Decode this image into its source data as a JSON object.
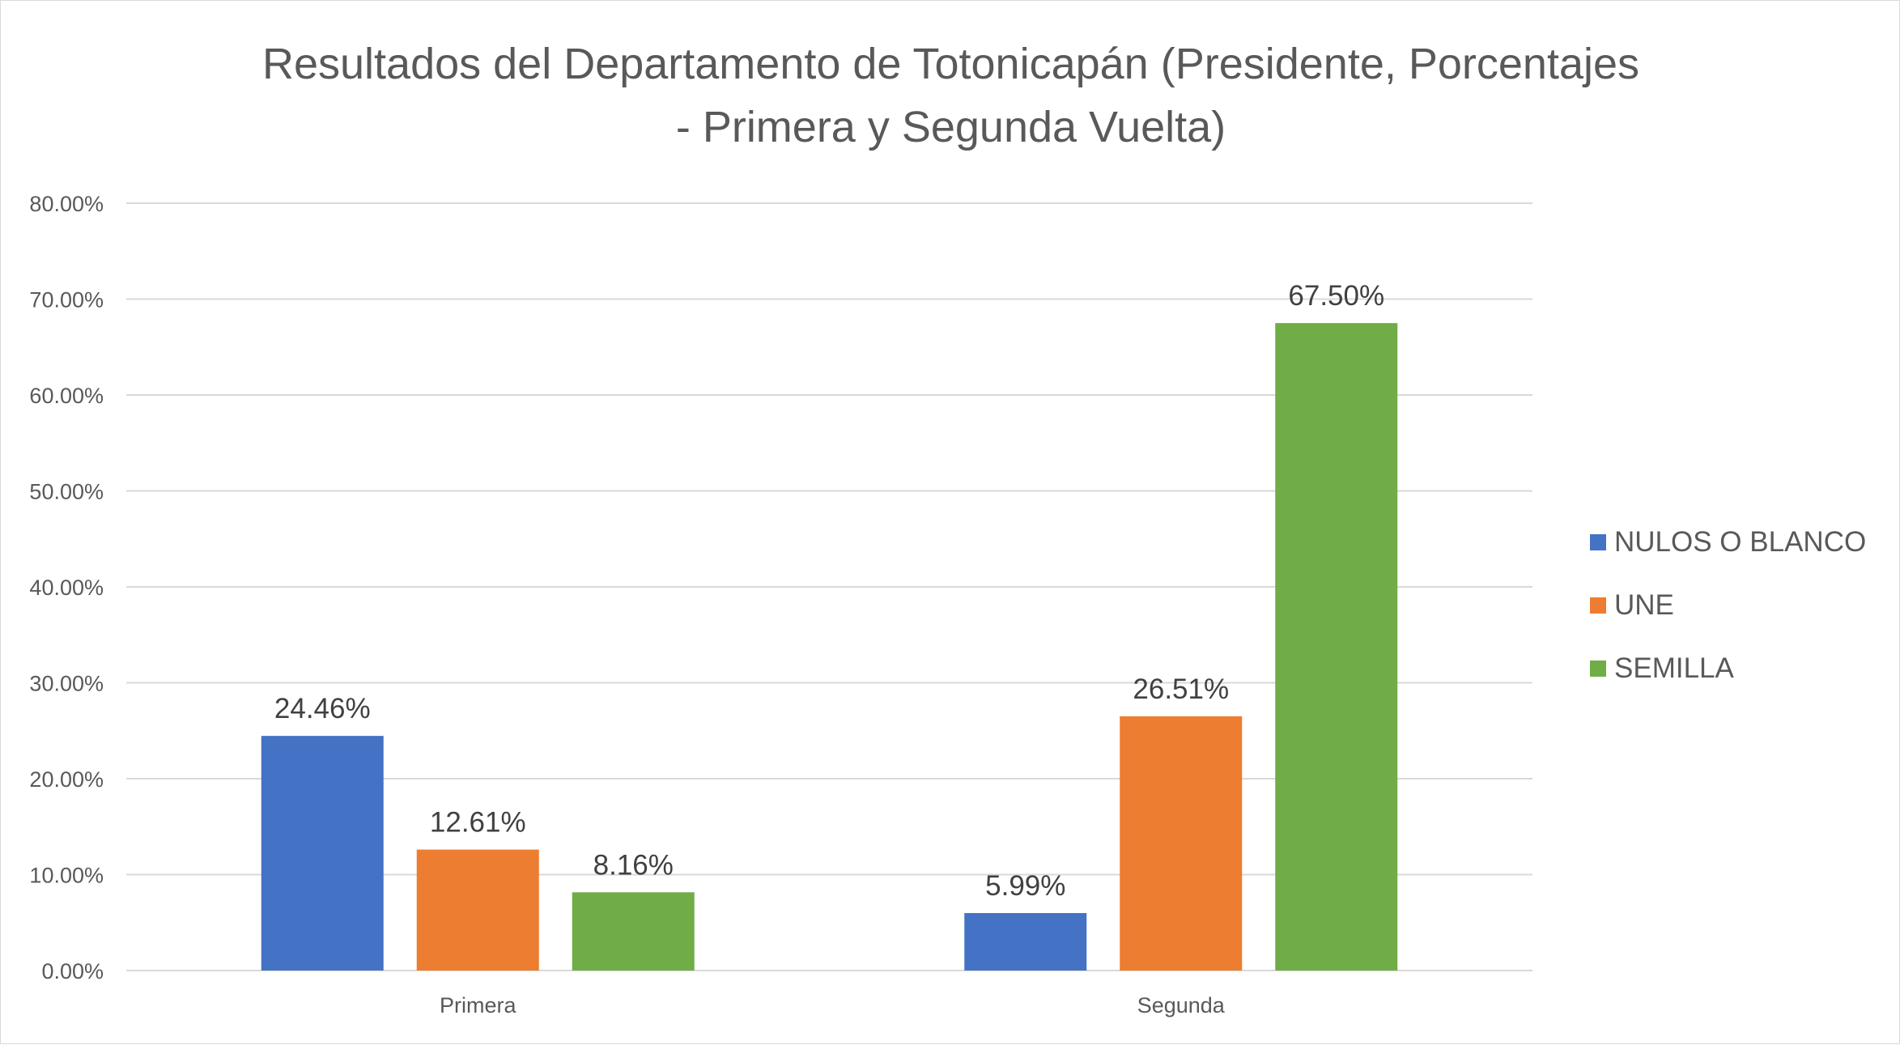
{
  "chart_data": {
    "type": "bar",
    "title_line1": "Resultados del Departamento de Totonicapán (Presidente, Porcentajes",
    "title_line2": "- Primera y Segunda Vuelta)",
    "categories": [
      "Primera",
      "Segunda"
    ],
    "series": [
      {
        "name": "NULOS O BLANCO",
        "color": "#4472c4",
        "values": [
          24.46,
          5.99
        ],
        "labels": [
          "24.46%",
          "5.99%"
        ]
      },
      {
        "name": "UNE",
        "color": "#ed7d31",
        "values": [
          12.61,
          26.51
        ],
        "labels": [
          "12.61%",
          "26.51%"
        ]
      },
      {
        "name": "SEMILLA",
        "color": "#70ad47",
        "values": [
          8.16,
          67.5
        ],
        "labels": [
          "8.16%",
          "67.50%"
        ]
      }
    ],
    "y_ticks": [
      "0.00%",
      "10.00%",
      "20.00%",
      "30.00%",
      "40.00%",
      "50.00%",
      "60.00%",
      "70.00%",
      "80.00%"
    ],
    "ylim": [
      0,
      80
    ],
    "xlabel": "",
    "ylabel": "",
    "grid": true,
    "legend_position": "right"
  }
}
